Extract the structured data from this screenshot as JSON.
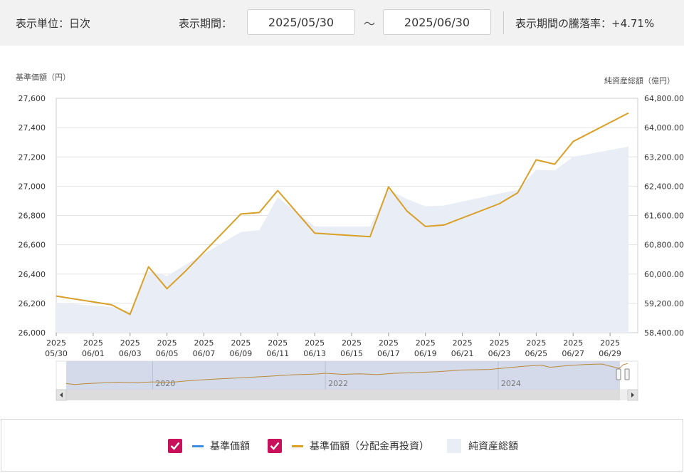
{
  "header": {
    "unit_label": "表示単位：日次",
    "period_label": "表示期間：",
    "start_date": "2025/05/30",
    "separator": "～",
    "end_date": "2025/06/30",
    "change_label": "表示期間の騰落率：+4.71%"
  },
  "chart_data": {
    "type": "line",
    "left_axis_title": "基準価額（円）",
    "right_axis_title": "純資産総額（億円）",
    "ylim_left": [
      26000,
      27600
    ],
    "ylim_right": [
      58400,
      64800
    ],
    "yticks_left": [
      "27,600",
      "27,400",
      "27,200",
      "27,000",
      "26,800",
      "26,600",
      "26,400",
      "26,200",
      "26,000"
    ],
    "yticks_right": [
      "64,800.00",
      "64,000.00",
      "63,200.00",
      "62,400.00",
      "61,600.00",
      "60,800.00",
      "60,000.00",
      "59,200.00",
      "58,400.00"
    ],
    "xticks": [
      {
        "year": "2025",
        "date": "05/30"
      },
      {
        "year": "2025",
        "date": "06/01"
      },
      {
        "year": "2025",
        "date": "06/03"
      },
      {
        "year": "2025",
        "date": "06/05"
      },
      {
        "year": "2025",
        "date": "06/07"
      },
      {
        "year": "2025",
        "date": "06/09"
      },
      {
        "year": "2025",
        "date": "06/11"
      },
      {
        "year": "2025",
        "date": "06/13"
      },
      {
        "year": "2025",
        "date": "06/15"
      },
      {
        "year": "2025",
        "date": "06/17"
      },
      {
        "year": "2025",
        "date": "06/19"
      },
      {
        "year": "2025",
        "date": "06/21"
      },
      {
        "year": "2025",
        "date": "06/23"
      },
      {
        "year": "2025",
        "date": "06/25"
      },
      {
        "year": "2025",
        "date": "06/27"
      },
      {
        "year": "2025",
        "date": "06/29"
      }
    ],
    "series": [
      {
        "name": "基準価額（分配金再投資）",
        "color": "#d9a028",
        "axis": "left",
        "points": [
          [
            "2025-05-30",
            26250
          ],
          [
            "2025-06-02",
            26190
          ],
          [
            "2025-06-03",
            26125
          ],
          [
            "2025-06-04",
            26450
          ],
          [
            "2025-06-05",
            26300
          ],
          [
            "2025-06-06",
            26420
          ],
          [
            "2025-06-09",
            26810
          ],
          [
            "2025-06-10",
            26820
          ],
          [
            "2025-06-11",
            26970
          ],
          [
            "2025-06-13",
            26680
          ],
          [
            "2025-06-16",
            26655
          ],
          [
            "2025-06-17",
            26995
          ],
          [
            "2025-06-18",
            26830
          ],
          [
            "2025-06-19",
            26725
          ],
          [
            "2025-06-20",
            26735
          ],
          [
            "2025-06-23",
            26880
          ],
          [
            "2025-06-24",
            26955
          ],
          [
            "2025-06-25",
            27180
          ],
          [
            "2025-06-26",
            27150
          ],
          [
            "2025-06-27",
            27305
          ],
          [
            "2025-06-30",
            27500
          ]
        ]
      },
      {
        "name": "純資産総額",
        "color": "#e9edf5",
        "axis": "right",
        "points": [
          [
            "2025-05-30",
            59220
          ],
          [
            "2025-06-02",
            59100
          ],
          [
            "2025-06-03",
            58980
          ],
          [
            "2025-06-04",
            60080
          ],
          [
            "2025-06-05",
            59950
          ],
          [
            "2025-06-06",
            60250
          ],
          [
            "2025-06-09",
            61150
          ],
          [
            "2025-06-10",
            61200
          ],
          [
            "2025-06-11",
            62100
          ],
          [
            "2025-06-13",
            61300
          ],
          [
            "2025-06-16",
            61300
          ],
          [
            "2025-06-17",
            62300
          ],
          [
            "2025-06-18",
            62050
          ],
          [
            "2025-06-19",
            61850
          ],
          [
            "2025-06-20",
            61870
          ],
          [
            "2025-06-23",
            62200
          ],
          [
            "2025-06-24",
            62300
          ],
          [
            "2025-06-25",
            62850
          ],
          [
            "2025-06-26",
            62830
          ],
          [
            "2025-06-27",
            63200
          ],
          [
            "2025-06-30",
            63480
          ]
        ]
      }
    ],
    "navigator": {
      "years": [
        "2020",
        "2022",
        "2024"
      ],
      "history": [
        [
          2019.0,
          26000
        ],
        [
          2019.1,
          25900
        ],
        [
          2019.2,
          25980
        ],
        [
          2019.4,
          26050
        ],
        [
          2019.6,
          26120
        ],
        [
          2019.8,
          26080
        ],
        [
          2020.0,
          26150
        ],
        [
          2020.2,
          26100
        ],
        [
          2020.4,
          26250
        ],
        [
          2020.7,
          26400
        ],
        [
          2021.0,
          26520
        ],
        [
          2021.3,
          26650
        ],
        [
          2021.6,
          26800
        ],
        [
          2021.9,
          26880
        ],
        [
          2022.0,
          26950
        ],
        [
          2022.2,
          26850
        ],
        [
          2022.4,
          26900
        ],
        [
          2022.6,
          26820
        ],
        [
          2022.8,
          26950
        ],
        [
          2023.0,
          27000
        ],
        [
          2023.3,
          27100
        ],
        [
          2023.6,
          27250
        ],
        [
          2023.9,
          27300
        ],
        [
          2024.1,
          27450
        ],
        [
          2024.3,
          27600
        ],
        [
          2024.5,
          27700
        ],
        [
          2024.6,
          27500
        ],
        [
          2024.8,
          27650
        ],
        [
          2025.0,
          27750
        ],
        [
          2025.2,
          27800
        ],
        [
          2025.3,
          27600
        ],
        [
          2025.4,
          27400
        ],
        [
          2025.45,
          27750
        ],
        [
          2025.5,
          27850
        ]
      ]
    }
  },
  "legend": {
    "items": [
      {
        "label": "基準価額",
        "color": "#3a8ee0",
        "checked": true
      },
      {
        "label": "基準価額（分配金再投資）",
        "color": "#d9a028",
        "checked": true
      },
      {
        "label": "純資産総額",
        "color": "#e9edf5"
      }
    ]
  }
}
